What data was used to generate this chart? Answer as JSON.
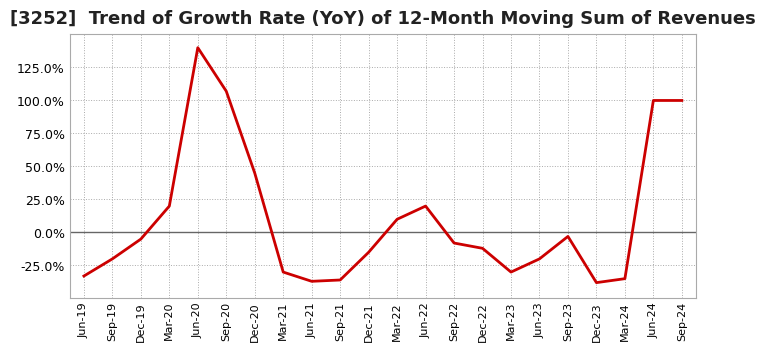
{
  "title": "[3252]  Trend of Growth Rate (YoY) of 12-Month Moving Sum of Revenues",
  "x_labels": [
    "Jun-19",
    "Sep-19",
    "Dec-19",
    "Mar-20",
    "Jun-20",
    "Sep-20",
    "Dec-20",
    "Mar-21",
    "Jun-21",
    "Sep-21",
    "Dec-21",
    "Mar-22",
    "Jun-22",
    "Sep-22",
    "Dec-22",
    "Mar-23",
    "Jun-23",
    "Sep-23",
    "Dec-23",
    "Mar-24",
    "Jun-24",
    "Sep-24"
  ],
  "y_values": [
    -33,
    -20,
    -5,
    20,
    140,
    107,
    45,
    -30,
    -37,
    -36,
    -15,
    10,
    20,
    -8,
    -12,
    -30,
    -20,
    -3,
    -38,
    -35,
    100,
    100
  ],
  "line_color": "#cc0000",
  "background_color": "#ffffff",
  "grid_color": "#aaaaaa",
  "zero_line_color": "#666666",
  "ylim": [
    -50,
    150
  ],
  "yticks": [
    -25,
    0,
    25,
    50,
    75,
    100,
    125
  ],
  "title_fontsize": 13,
  "line_width": 2.0,
  "spine_color": "#aaaaaa"
}
